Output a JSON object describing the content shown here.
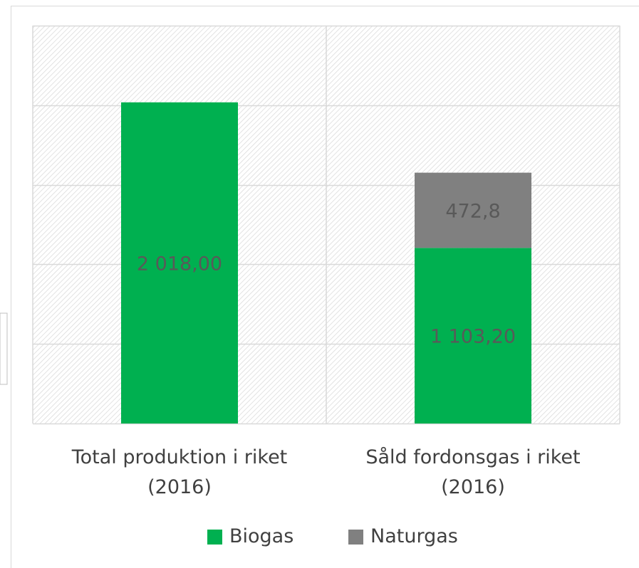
{
  "chart_data": {
    "type": "stacked_bar",
    "categories": [
      "Total produktion i riket (2016)",
      "Såld fordonsgas i riket (2016)"
    ],
    "series": [
      {
        "name": "Biogas",
        "color": "#00b050",
        "values": [
          2018.0,
          1103.2
        ],
        "value_labels": [
          "2 018,00",
          "1 103,20"
        ]
      },
      {
        "name": "Naturgas",
        "color": "#808080",
        "values": [
          null,
          472.8
        ],
        "value_labels": [
          null,
          "472,8"
        ]
      }
    ],
    "ylim": [
      0,
      2500
    ],
    "yticks": [
      0,
      500,
      1000,
      1500,
      2000,
      2500
    ],
    "grid": true
  }
}
